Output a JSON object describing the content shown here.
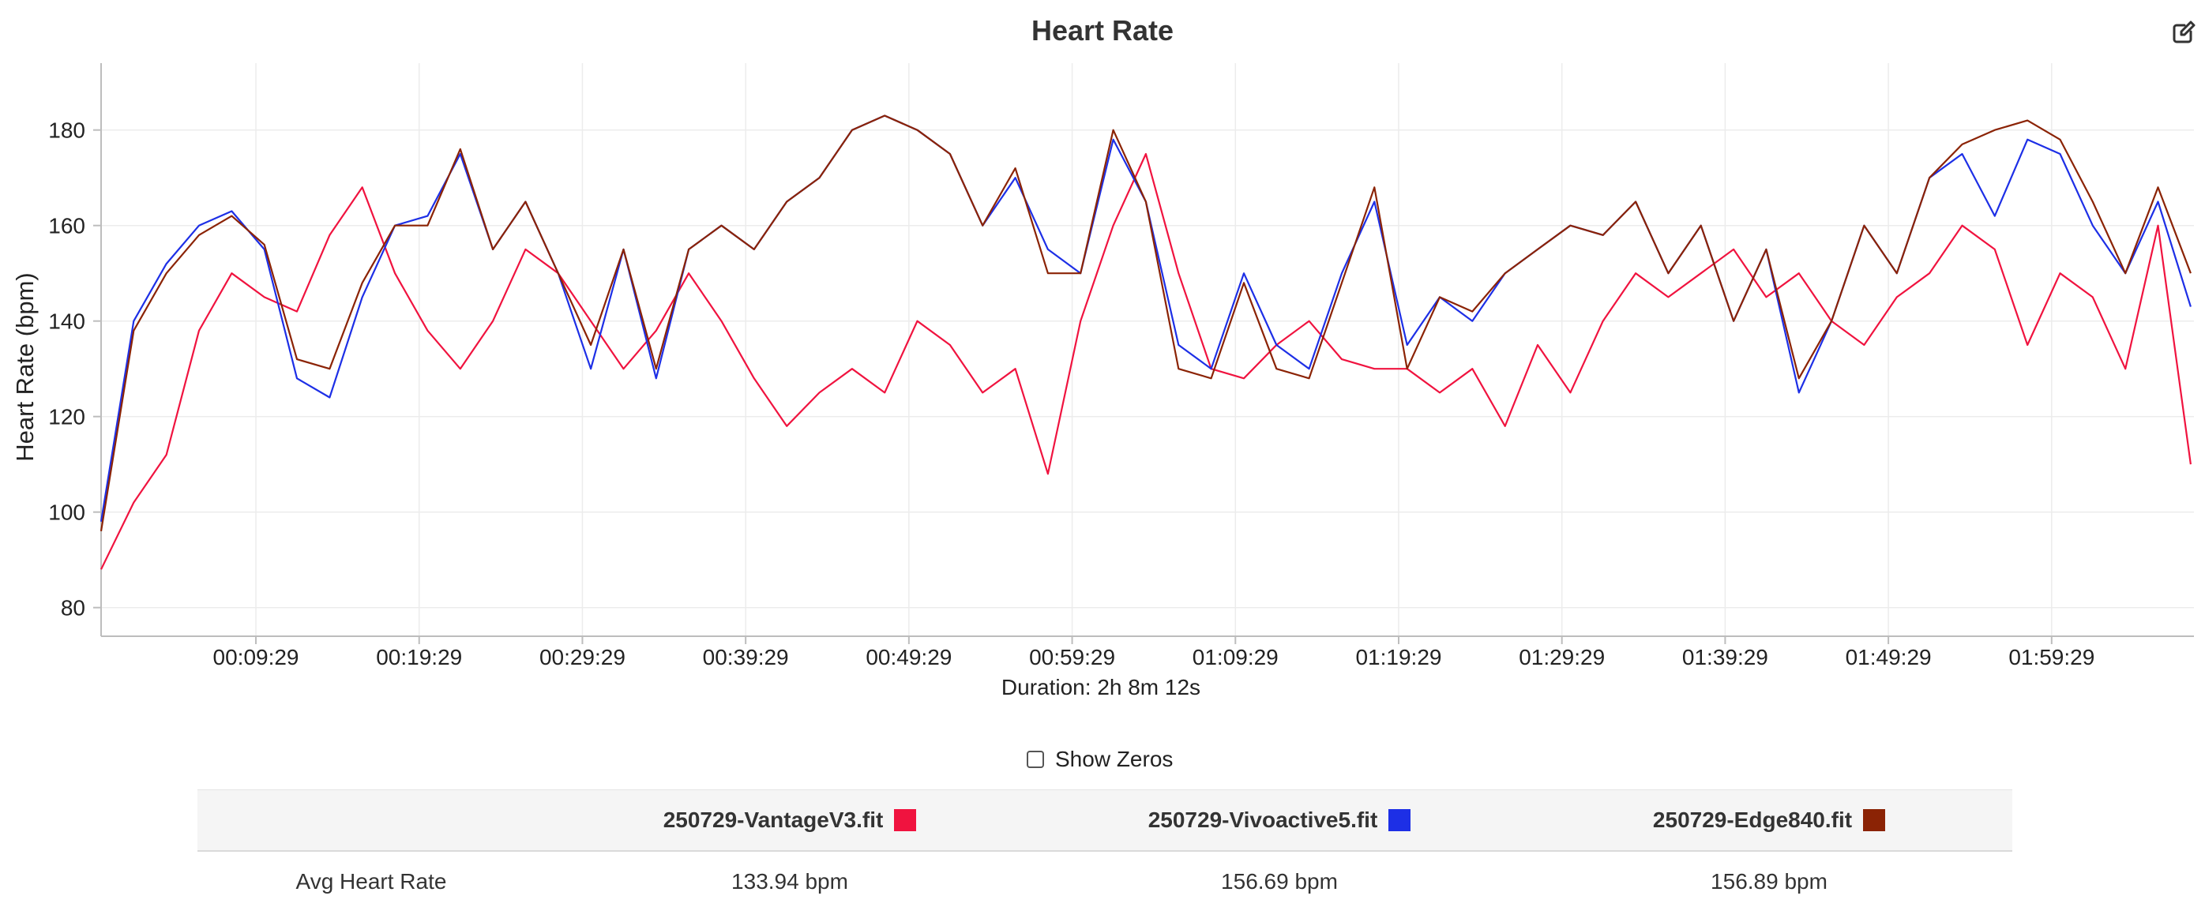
{
  "chart": {
    "title": "Heart Rate",
    "edit_icon": "edit-icon"
  },
  "chart_data": {
    "type": "line",
    "title": "Heart Rate",
    "xlabel": "Duration: 2h 8m 12s",
    "ylabel": "Heart Rate (bpm)",
    "x_unit": "elapsed time (h:mm:ss)",
    "xlim": [
      "00:00:00",
      "02:08:12"
    ],
    "ylim": [
      74,
      194
    ],
    "x_ticks": [
      "00:09:29",
      "00:19:29",
      "00:29:29",
      "00:39:29",
      "00:49:29",
      "00:59:29",
      "01:09:29",
      "01:19:29",
      "01:29:29",
      "01:39:29",
      "01:49:29",
      "01:59:29"
    ],
    "y_ticks": [
      80,
      100,
      120,
      140,
      160,
      180
    ],
    "grid": true,
    "x": [
      "00:00:00",
      "00:02:00",
      "00:04:00",
      "00:06:00",
      "00:08:00",
      "00:10:00",
      "00:12:00",
      "00:14:00",
      "00:16:00",
      "00:18:00",
      "00:20:00",
      "00:22:00",
      "00:24:00",
      "00:26:00",
      "00:28:00",
      "00:30:00",
      "00:32:00",
      "00:34:00",
      "00:36:00",
      "00:38:00",
      "00:40:00",
      "00:42:00",
      "00:44:00",
      "00:46:00",
      "00:48:00",
      "00:50:00",
      "00:52:00",
      "00:54:00",
      "00:56:00",
      "00:58:00",
      "01:00:00",
      "01:02:00",
      "01:04:00",
      "01:06:00",
      "01:08:00",
      "01:10:00",
      "01:12:00",
      "01:14:00",
      "01:16:00",
      "01:18:00",
      "01:20:00",
      "01:22:00",
      "01:24:00",
      "01:26:00",
      "01:28:00",
      "01:30:00",
      "01:32:00",
      "01:34:00",
      "01:36:00",
      "01:38:00",
      "01:40:00",
      "01:42:00",
      "01:44:00",
      "01:46:00",
      "01:48:00",
      "01:50:00",
      "01:52:00",
      "01:54:00",
      "01:56:00",
      "01:58:00",
      "02:00:00",
      "02:02:00",
      "02:04:00",
      "02:06:00",
      "02:08:00"
    ],
    "series": [
      {
        "name": "250729-VantageV3.fit",
        "color": "#f0133f",
        "values": [
          88,
          102,
          112,
          138,
          150,
          145,
          142,
          158,
          168,
          150,
          138,
          130,
          140,
          155,
          150,
          140,
          130,
          138,
          150,
          140,
          128,
          118,
          125,
          130,
          125,
          140,
          135,
          125,
          130,
          108,
          140,
          160,
          175,
          150,
          130,
          128,
          135,
          140,
          132,
          130,
          130,
          125,
          130,
          118,
          135,
          125,
          140,
          150,
          145,
          150,
          155,
          145,
          150,
          140,
          135,
          145,
          150,
          160,
          155,
          135,
          150,
          145,
          130,
          160,
          110
        ]
      },
      {
        "name": "250729-Vivoactive5.fit",
        "color": "#1d2fe6",
        "values": [
          98,
          140,
          152,
          160,
          163,
          155,
          128,
          124,
          145,
          160,
          162,
          175,
          155,
          165,
          150,
          130,
          155,
          128,
          155,
          160,
          155,
          165,
          170,
          180,
          183,
          180,
          175,
          160,
          170,
          155,
          150,
          178,
          165,
          135,
          130,
          150,
          135,
          130,
          150,
          165,
          135,
          145,
          140,
          150,
          155,
          160,
          158,
          165,
          150,
          160,
          140,
          155,
          125,
          140,
          160,
          150,
          170,
          175,
          162,
          178,
          175,
          160,
          150,
          165,
          143
        ]
      },
      {
        "name": "250729-Edge840.fit",
        "color": "#8b2305",
        "values": [
          96,
          138,
          150,
          158,
          162,
          156,
          132,
          130,
          148,
          160,
          160,
          176,
          155,
          165,
          150,
          135,
          155,
          130,
          155,
          160,
          155,
          165,
          170,
          180,
          183,
          180,
          175,
          160,
          172,
          150,
          150,
          180,
          165,
          130,
          128,
          148,
          130,
          128,
          148,
          168,
          130,
          145,
          142,
          150,
          155,
          160,
          158,
          165,
          150,
          160,
          140,
          155,
          128,
          140,
          160,
          150,
          170,
          177,
          180,
          182,
          178,
          165,
          150,
          168,
          150
        ]
      }
    ]
  },
  "controls": {
    "show_zeros_label": "Show Zeros",
    "show_zeros_checked": false
  },
  "stats": {
    "columns": [
      {
        "file": "250729-VantageV3.fit",
        "color": "#f0133f"
      },
      {
        "file": "250729-Vivoactive5.fit",
        "color": "#1d2fe6"
      },
      {
        "file": "250729-Edge840.fit",
        "color": "#8b2305"
      }
    ],
    "rows": [
      {
        "label": "Avg Heart Rate",
        "values": [
          "133.94 bpm",
          "156.69 bpm",
          "156.89 bpm"
        ]
      }
    ]
  }
}
